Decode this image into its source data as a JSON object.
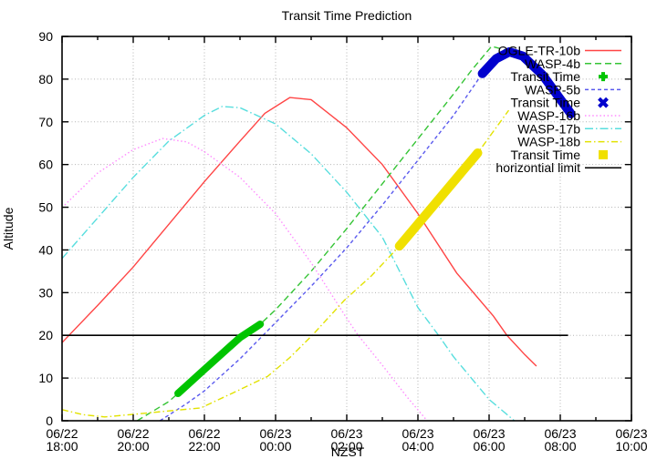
{
  "title": "Transit Time Prediction",
  "axes": {
    "xlabel": "NZST",
    "ylabel": "Altitude",
    "x_ticks": [
      {
        "date": "06/22",
        "time": "18:00"
      },
      {
        "date": "06/22",
        "time": "20:00"
      },
      {
        "date": "06/22",
        "time": "22:00"
      },
      {
        "date": "06/23",
        "time": "00:00"
      },
      {
        "date": "06/23",
        "time": "02:00"
      },
      {
        "date": "06/23",
        "time": "04:00"
      },
      {
        "date": "06/23",
        "time": "06:00"
      },
      {
        "date": "06/23",
        "time": "08:00"
      },
      {
        "date": "06/23",
        "time": "10:00"
      }
    ],
    "y_ticks": [
      "0",
      "10",
      "20",
      "30",
      "40",
      "50",
      "60",
      "70",
      "80",
      "90"
    ]
  },
  "legend": {
    "entries": [
      {
        "label": "OGLE-TR-10b",
        "sample": "line",
        "color": "#ff4545",
        "dash": "solid"
      },
      {
        "label": "WASP-4b",
        "sample": "line",
        "color": "#35c435",
        "dash": "dash"
      },
      {
        "label": "Transit Time",
        "sample": "marker",
        "color": "#00c400",
        "marker": "plus"
      },
      {
        "label": "WASP-5b",
        "sample": "line",
        "color": "#5a5aee",
        "dash": "shortdash"
      },
      {
        "label": "Transit Time",
        "sample": "marker",
        "color": "#0000cd",
        "marker": "x"
      },
      {
        "label": "WASP-16b",
        "sample": "line",
        "color": "#ff8cff",
        "dash": "dot"
      },
      {
        "label": "WASP-17b",
        "sample": "line",
        "color": "#58dede",
        "dash": "dashdot"
      },
      {
        "label": "WASP-18b",
        "sample": "line",
        "color": "#e2e200",
        "dash": "dashdot2"
      },
      {
        "label": "Transit Time",
        "sample": "marker",
        "color": "#f0e000",
        "marker": "square"
      },
      {
        "label": "horizontial limit",
        "sample": "line",
        "color": "#000000",
        "dash": "solid"
      }
    ]
  },
  "chart_data": {
    "type": "line",
    "title": "Transit Time Prediction",
    "xlabel": "NZST",
    "ylabel": "Altitude",
    "x_axis_start": "06/22 18:00",
    "x_axis_end": "06/23 10:00",
    "x_hours_total": 16,
    "ylim": [
      0,
      90
    ],
    "grid": true,
    "legend_position": "top-right",
    "note": "x values in series are hours after 06/22 18:00 NZST; y values are altitude in degrees",
    "series": [
      {
        "name": "OGLE-TR-10b",
        "color": "#ff4545",
        "dash": "solid",
        "points": [
          [
            0,
            18.3
          ],
          [
            1,
            27
          ],
          [
            2,
            36
          ],
          [
            3,
            46
          ],
          [
            4,
            56
          ],
          [
            5,
            65.5
          ],
          [
            5.7,
            72
          ],
          [
            6.4,
            75.7
          ],
          [
            7,
            75.2
          ],
          [
            8,
            68.6
          ],
          [
            9,
            60
          ],
          [
            10,
            48.5
          ],
          [
            11.09,
            34.6
          ],
          [
            12.12,
            24.5
          ],
          [
            12.5,
            20
          ],
          [
            13,
            15.5
          ],
          [
            13.33,
            12.8
          ]
        ]
      },
      {
        "name": "WASP-4b",
        "color": "#35c435",
        "dash": "dash",
        "points": [
          [
            2.11,
            0
          ],
          [
            3,
            4.5
          ],
          [
            3.26,
            6.4
          ],
          [
            4,
            12
          ],
          [
            5,
            19.5
          ],
          [
            5.57,
            22.6
          ],
          [
            6,
            26
          ],
          [
            7,
            35
          ],
          [
            8,
            45
          ],
          [
            9,
            55.5
          ],
          [
            10,
            66
          ],
          [
            11,
            76.5
          ],
          [
            11.5,
            82
          ],
          [
            12.07,
            87.7
          ],
          [
            12.6,
            86.5
          ],
          [
            13.1,
            83.5
          ]
        ]
      },
      {
        "name": "WASP-5b",
        "color": "#5a5aee",
        "dash": "shortdash",
        "points": [
          [
            2.75,
            0
          ],
          [
            3.5,
            4
          ],
          [
            4,
            7
          ],
          [
            5,
            14.5
          ],
          [
            6,
            23
          ],
          [
            7,
            31.5
          ],
          [
            8,
            40.5
          ],
          [
            9,
            50.5
          ],
          [
            10,
            61
          ],
          [
            11,
            71.5
          ],
          [
            11.81,
            81.3
          ],
          [
            12.57,
            86.4
          ],
          [
            13,
            85
          ],
          [
            13.6,
            80
          ],
          [
            14.3,
            71.9
          ]
        ]
      },
      {
        "name": "WASP-16b",
        "color": "#ff8cff",
        "dash": "dot",
        "points": [
          [
            0,
            49.9
          ],
          [
            1,
            58
          ],
          [
            2,
            63.5
          ],
          [
            2.82,
            66.1
          ],
          [
            3.5,
            65.3
          ],
          [
            4,
            63
          ],
          [
            5,
            57
          ],
          [
            6,
            48.5
          ],
          [
            7,
            37
          ],
          [
            8,
            24
          ],
          [
            8.32,
            20
          ],
          [
            9,
            13
          ],
          [
            9.7,
            5.5
          ],
          [
            10.26,
            0
          ]
        ]
      },
      {
        "name": "WASP-17b",
        "color": "#58dede",
        "dash": "dashdot",
        "points": [
          [
            0,
            38
          ],
          [
            1,
            47.5
          ],
          [
            2,
            57
          ],
          [
            3,
            65.5
          ],
          [
            4,
            71.5
          ],
          [
            4.5,
            73.6
          ],
          [
            5,
            73.3
          ],
          [
            6,
            69.5
          ],
          [
            7,
            62.5
          ],
          [
            8,
            53.5
          ],
          [
            9,
            43
          ],
          [
            10,
            26.5
          ],
          [
            10.58,
            20
          ],
          [
            11,
            15
          ],
          [
            12,
            5
          ],
          [
            12.71,
            0
          ]
        ]
      },
      {
        "name": "WASP-18b",
        "color": "#e2e200",
        "dash": "dashdot2",
        "points": [
          [
            0,
            2.6
          ],
          [
            0.6,
            1.4
          ],
          [
            1.2,
            0.9
          ],
          [
            2,
            1.5
          ],
          [
            3,
            2.3
          ],
          [
            3.9,
            3
          ],
          [
            4.8,
            6.5
          ],
          [
            5.78,
            10.4
          ],
          [
            6.4,
            14.8
          ],
          [
            7.03,
            20
          ],
          [
            7.93,
            28.2
          ],
          [
            8.7,
            34
          ],
          [
            9.48,
            40.9
          ],
          [
            10.5,
            51
          ],
          [
            11.68,
            62.7
          ],
          [
            12.55,
            72.7
          ]
        ]
      }
    ],
    "transit_markers": [
      {
        "name": "WASP-4b Transit Time",
        "color": "#00c400",
        "shape": "plus",
        "stroke_width": 8,
        "points": [
          [
            3.26,
            6.4
          ],
          [
            4,
            12
          ],
          [
            5,
            19.5
          ],
          [
            5.57,
            22.6
          ]
        ]
      },
      {
        "name": "WASP-5b Transit Time",
        "color": "#0000cd",
        "shape": "x",
        "stroke_width": 10,
        "points": [
          [
            11.81,
            81.3
          ],
          [
            12.2,
            84.8
          ],
          [
            12.57,
            86.4
          ],
          [
            12.95,
            85.4
          ],
          [
            13.5,
            81
          ],
          [
            14.3,
            71.9
          ]
        ]
      },
      {
        "name": "WASP-18b Transit Time",
        "color": "#f0e000",
        "shape": "square",
        "stroke_width": 10,
        "points": [
          [
            9.48,
            40.9
          ],
          [
            10.5,
            51
          ],
          [
            11.68,
            62.7
          ]
        ]
      }
    ],
    "horizontal_limit": {
      "label": "horizontial limit",
      "altitude": 20,
      "t_start": 0,
      "t_end": 14.22,
      "color": "#000000"
    },
    "grid_color": "#b5b5b5"
  }
}
